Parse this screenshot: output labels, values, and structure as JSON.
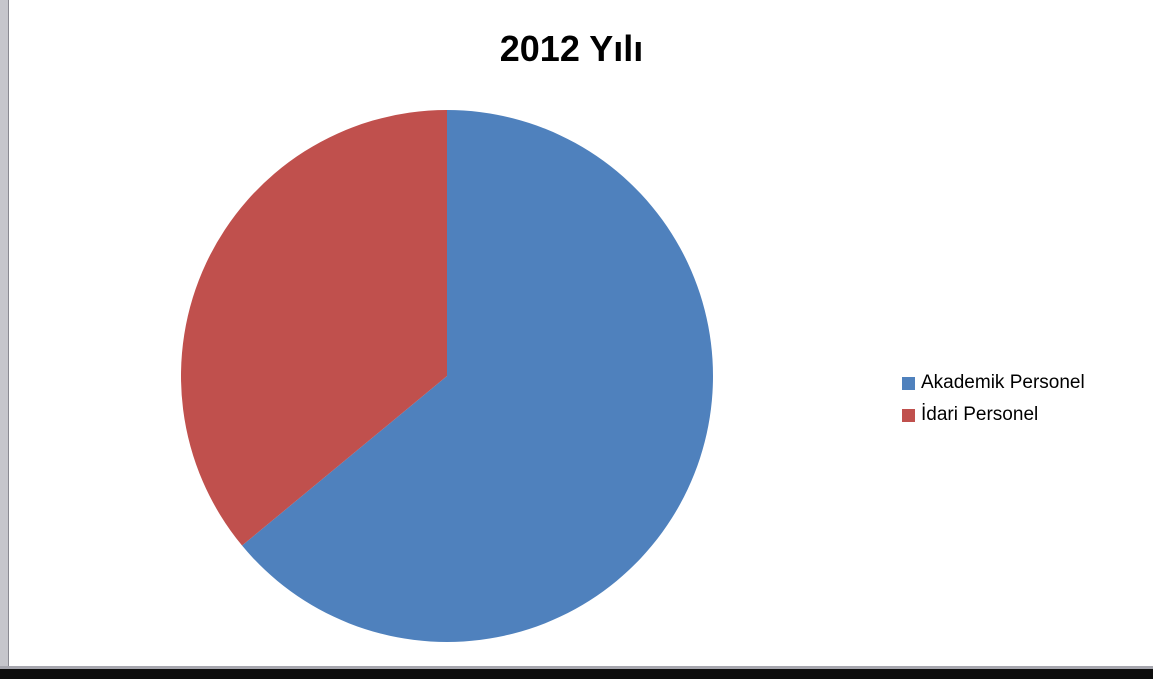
{
  "chart_data": {
    "type": "pie",
    "title": "2012 Yılı",
    "slices": [
      {
        "label": "Akademik Personel",
        "value": 64,
        "color": "#4f81bd"
      },
      {
        "label": "İdari Personel",
        "value": 36,
        "color": "#c0504d"
      }
    ],
    "legend_position": "right"
  }
}
